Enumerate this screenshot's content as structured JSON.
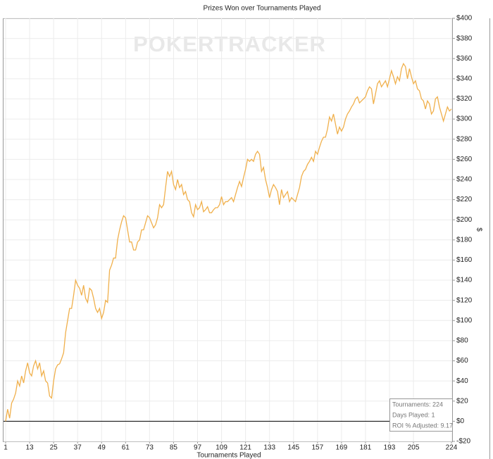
{
  "chart_data": {
    "type": "line",
    "title": "Prizes Won over Tournaments Played",
    "watermark": "POKERTRACKER",
    "xlabel": "Tournaments Played",
    "ylabel": "$",
    "color": "#f0b04c",
    "x": [
      1,
      2,
      3,
      4,
      5,
      6,
      7,
      8,
      9,
      10,
      11,
      12,
      13,
      14,
      15,
      16,
      17,
      18,
      19,
      20,
      21,
      22,
      23,
      24,
      25,
      26,
      27,
      28,
      29,
      30,
      31,
      32,
      33,
      34,
      35,
      36,
      37,
      38,
      39,
      40,
      41,
      42,
      43,
      44,
      45,
      46,
      47,
      48,
      49,
      50,
      51,
      52,
      53,
      54,
      55,
      56,
      57,
      58,
      59,
      60,
      61,
      62,
      63,
      64,
      65,
      66,
      67,
      68,
      69,
      70,
      71,
      72,
      73,
      74,
      75,
      76,
      77,
      78,
      79,
      80,
      81,
      82,
      83,
      84,
      85,
      86,
      87,
      88,
      89,
      90,
      91,
      92,
      93,
      94,
      95,
      96,
      97,
      98,
      99,
      100,
      101,
      102,
      103,
      104,
      105,
      106,
      107,
      108,
      109,
      110,
      111,
      112,
      113,
      114,
      115,
      116,
      117,
      118,
      119,
      120,
      121,
      122,
      123,
      124,
      125,
      126,
      127,
      128,
      129,
      130,
      131,
      132,
      133,
      134,
      135,
      136,
      137,
      138,
      139,
      140,
      141,
      142,
      143,
      144,
      145,
      146,
      147,
      148,
      149,
      150,
      151,
      152,
      153,
      154,
      155,
      156,
      157,
      158,
      159,
      160,
      161,
      162,
      163,
      164,
      165,
      166,
      167,
      168,
      169,
      170,
      171,
      172,
      173,
      174,
      175,
      176,
      177,
      178,
      179,
      180,
      181,
      182,
      183,
      184,
      185,
      186,
      187,
      188,
      189,
      190,
      191,
      192,
      193,
      194,
      195,
      196,
      197,
      198,
      199,
      200,
      201,
      202,
      203,
      204,
      205,
      206,
      207,
      208,
      209,
      210,
      211,
      212,
      213,
      214,
      215,
      216,
      217,
      218,
      219,
      220,
      221,
      222,
      223,
      224
    ],
    "values": [
      0,
      12,
      3,
      18,
      22,
      28,
      40,
      35,
      45,
      38,
      50,
      58,
      48,
      45,
      55,
      60,
      52,
      58,
      45,
      50,
      40,
      38,
      25,
      23,
      40,
      52,
      56,
      57,
      62,
      68,
      88,
      100,
      112,
      112,
      125,
      140,
      135,
      132,
      125,
      135,
      122,
      118,
      132,
      130,
      122,
      112,
      108,
      112,
      102,
      108,
      120,
      118,
      150,
      155,
      162,
      162,
      180,
      190,
      198,
      204,
      202,
      190,
      178,
      178,
      170,
      170,
      178,
      180,
      190,
      190,
      197,
      204,
      202,
      197,
      192,
      195,
      202,
      215,
      212,
      215,
      232,
      248,
      243,
      248,
      235,
      230,
      240,
      232,
      235,
      225,
      228,
      220,
      218,
      207,
      203,
      215,
      210,
      212,
      218,
      208,
      210,
      213,
      207,
      207,
      210,
      212,
      212,
      215,
      223,
      215,
      218,
      218,
      220,
      222,
      218,
      225,
      232,
      238,
      233,
      242,
      250,
      260,
      258,
      260,
      258,
      265,
      268,
      265,
      248,
      252,
      240,
      232,
      222,
      230,
      235,
      232,
      228,
      215,
      230,
      222,
      225,
      228,
      218,
      222,
      220,
      218,
      225,
      232,
      243,
      248,
      250,
      255,
      258,
      262,
      258,
      268,
      265,
      272,
      278,
      282,
      282,
      290,
      302,
      298,
      305,
      295,
      285,
      292,
      288,
      292,
      300,
      305,
      308,
      312,
      315,
      320,
      322,
      316,
      318,
      320,
      322,
      328,
      332,
      330,
      315,
      325,
      335,
      338,
      332,
      335,
      338,
      332,
      340,
      348,
      342,
      335,
      342,
      338,
      350,
      355,
      352,
      340,
      350,
      342,
      335,
      338,
      330,
      328,
      320,
      318,
      310,
      318,
      315,
      305,
      308,
      320,
      322,
      312,
      305,
      298,
      305,
      312,
      308,
      310
    ],
    "xlim": [
      1,
      224
    ],
    "xticks": [
      1,
      13,
      25,
      37,
      49,
      61,
      73,
      85,
      97,
      109,
      121,
      133,
      145,
      157,
      169,
      181,
      193,
      205,
      224
    ],
    "ylim": [
      -20,
      400
    ],
    "yticks": [
      {
        "value": -20,
        "label": "-$20"
      },
      {
        "value": 0,
        "label": "$0"
      },
      {
        "value": 20,
        "label": "$20"
      },
      {
        "value": 40,
        "label": "$40"
      },
      {
        "value": 60,
        "label": "$60"
      },
      {
        "value": 80,
        "label": "$80"
      },
      {
        "value": 100,
        "label": "$100"
      },
      {
        "value": 120,
        "label": "$120"
      },
      {
        "value": 140,
        "label": "$140"
      },
      {
        "value": 160,
        "label": "$160"
      },
      {
        "value": 180,
        "label": "$180"
      },
      {
        "value": 200,
        "label": "$200"
      },
      {
        "value": 220,
        "label": "$220"
      },
      {
        "value": 240,
        "label": "$240"
      },
      {
        "value": 260,
        "label": "$260"
      },
      {
        "value": 280,
        "label": "$280"
      },
      {
        "value": 300,
        "label": "$300"
      },
      {
        "value": 320,
        "label": "$320"
      },
      {
        "value": 340,
        "label": "$340"
      },
      {
        "value": 360,
        "label": "$360"
      },
      {
        "value": 380,
        "label": "$380"
      },
      {
        "value": 400,
        "label": "$400"
      }
    ],
    "grid": true,
    "annotations": [
      "Tournaments: 224",
      "Days Played: 1",
      "ROI % Adjusted: 9.17"
    ]
  }
}
